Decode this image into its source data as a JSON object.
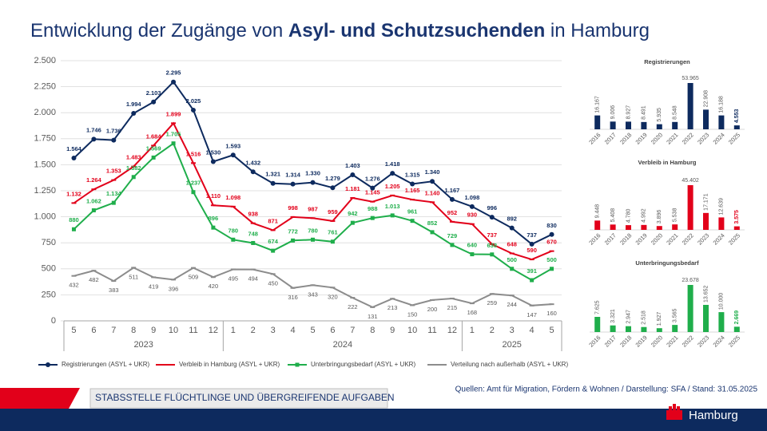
{
  "header": {
    "title_start": "Entwicklung der Zugänge von ",
    "title_bold": "Asyl- und Schutzsuchenden",
    "title_end": " in Hamburg"
  },
  "chart_data": [
    {
      "type": "line",
      "categories": [
        "5",
        "6",
        "7",
        "8",
        "9",
        "10",
        "11",
        "12",
        "1",
        "2",
        "3",
        "4",
        "5",
        "6",
        "7",
        "8",
        "9",
        "10",
        "11",
        "12",
        "1",
        "2",
        "3",
        "4",
        "5"
      ],
      "category_groups": [
        {
          "label": "2023",
          "size": 8
        },
        {
          "label": "2024",
          "size": 12
        },
        {
          "label": "2025",
          "size": 5
        }
      ],
      "ylim": [
        0,
        2500
      ],
      "yticks": [
        0,
        250,
        500,
        750,
        {
          "value": 1000,
          "label": "1.000"
        },
        {
          "value": 1250,
          "label": "1.250"
        },
        {
          "value": 1500,
          "label": "1.500"
        },
        {
          "value": 1750,
          "label": "1.750"
        },
        {
          "value": 2000,
          "label": "2.000"
        },
        {
          "value": 2250,
          "label": "2.250"
        },
        {
          "value": 2500,
          "label": "2.500"
        }
      ],
      "grid": true,
      "series": [
        {
          "name": "Registrierungen (ASYL + UKR)",
          "color": "#0d2a5e",
          "marker": "circle",
          "values": [
            1564,
            1746,
            1736,
            1994,
            2103,
            2295,
            2025,
            1530,
            1593,
            1432,
            1321,
            1314,
            1330,
            1279,
            1403,
            1276,
            1418,
            1315,
            1340,
            1167,
            1098,
            996,
            892,
            737,
            830
          ],
          "value_labels": [
            "1.564",
            "1.746",
            "1.736",
            "1.994",
            "2.103",
            "2.295",
            "2.025",
            "1.530",
            "1.593",
            "1.432",
            "1.321",
            "1.314",
            "1.330",
            "1.279",
            "1.403",
            "1.276",
            "1.418",
            "1.315",
            "1.340",
            "1.167",
            "1.098",
            "996",
            "892",
            "737",
            "830"
          ]
        },
        {
          "name": "Verbleib in Hamburg (ASYL + UKR)",
          "color": "#e2001a",
          "marker": "dash",
          "values": [
            1132,
            1264,
            1353,
            1483,
            1684,
            1899,
            1516,
            1110,
            1098,
            938,
            871,
            998,
            987,
            959,
            1181,
            1145,
            1205,
            1165,
            1140,
            952,
            930,
            737,
            648,
            590,
            670
          ],
          "value_labels": [
            "1.132",
            "1.264",
            "1.353",
            "1.483",
            "1.684",
            "1.899",
            "1.516",
            "1.110",
            "1.098",
            "938",
            "871",
            "998",
            "987",
            "959",
            "1.181",
            "1.145",
            "1.205",
            "1.165",
            "1.140",
            "952",
            "930",
            "737",
            "648",
            "590",
            "670"
          ]
        },
        {
          "name": "Unterbringungsbedarf (ASYL + UKR)",
          "color": "#1fae4b",
          "marker": "square",
          "values": [
            880,
            1062,
            1134,
            1382,
            1569,
            1705,
            1237,
            896,
            780,
            748,
            674,
            772,
            780,
            761,
            942,
            988,
            1013,
            961,
            852,
            729,
            640,
            638,
            500,
            391,
            500
          ],
          "value_labels": [
            "880",
            "1.062",
            "1.134",
            "1.382",
            "1.569",
            "1.705",
            "1.237",
            "896",
            "780",
            "748",
            "674",
            "772",
            "780",
            "761",
            "942",
            "988",
            "1.013",
            "961",
            "852",
            "729",
            "640",
            "638",
            "500",
            "391",
            "500"
          ]
        },
        {
          "name": "Verteilung nach außerhalb (ASYL + UKR)",
          "color": "#8c8c8c",
          "marker": "dash",
          "values": [
            432,
            482,
            383,
            511,
            419,
            396,
            509,
            420,
            495,
            494,
            450,
            316,
            343,
            320,
            222,
            131,
            213,
            150,
            200,
            215,
            168,
            259,
            244,
            147,
            160
          ],
          "value_labels": [
            "432",
            "482",
            "383",
            "511",
            "419",
            "396",
            "509",
            "420",
            "495",
            "494",
            "450",
            "316",
            "343",
            "320",
            "222",
            "131",
            "213",
            "150",
            "200",
            "215",
            "168",
            "259",
            "244",
            "147",
            "160"
          ]
        }
      ]
    },
    {
      "type": "bar",
      "title": "Registrierungen",
      "color": "#0d2a5e",
      "categories": [
        "2016",
        "2017",
        "2018",
        "2019",
        "2020",
        "2021",
        "2022",
        "2023",
        "2024",
        "2025"
      ],
      "values": [
        16167,
        9006,
        8927,
        8491,
        5935,
        8548,
        53965,
        22908,
        16188,
        4553
      ],
      "value_labels": [
        "16.167",
        "9.006",
        "8.927",
        "8.491",
        "5.935",
        "8.548",
        "53.965",
        "22.908",
        "16.188",
        "4.553"
      ]
    },
    {
      "type": "bar",
      "title": "Verbleib in Hamburg",
      "color": "#e2001a",
      "categories": [
        "2016",
        "2017",
        "2018",
        "2019",
        "2020",
        "2021",
        "2022",
        "2023",
        "2024",
        "2025"
      ],
      "values": [
        9448,
        5408,
        4780,
        4992,
        3896,
        5538,
        45402,
        17171,
        12639,
        3575
      ],
      "value_labels": [
        "9.448",
        "5.408",
        "4.780",
        "4.992",
        "3.896",
        "5.538",
        "45.402",
        "17.171",
        "12.639",
        "3.575"
      ]
    },
    {
      "type": "bar",
      "title": "Unterbringungsbedarf",
      "color": "#1fae4b",
      "categories": [
        "2016",
        "2017",
        "2018",
        "2019",
        "2020",
        "2021",
        "2022",
        "2023",
        "2024",
        "2025"
      ],
      "values": [
        7625,
        3321,
        2947,
        2518,
        1927,
        3565,
        23678,
        13652,
        10000,
        2669
      ],
      "value_labels": [
        "7.625",
        "3.321",
        "2.947",
        "2.518",
        "1.927",
        "3.565",
        "23.678",
        "13.652",
        "10.000",
        "2.669"
      ]
    }
  ],
  "footer": {
    "department": "STABSSTELLE FLÜCHTLINGE UND ÜBERGREIFENDE AUFGABEN",
    "sources": "Quellen: Amt für Migration, Fördern & Wohnen / Darstellung: SFA / Stand: 31.05.2025",
    "brand": "Hamburg"
  }
}
